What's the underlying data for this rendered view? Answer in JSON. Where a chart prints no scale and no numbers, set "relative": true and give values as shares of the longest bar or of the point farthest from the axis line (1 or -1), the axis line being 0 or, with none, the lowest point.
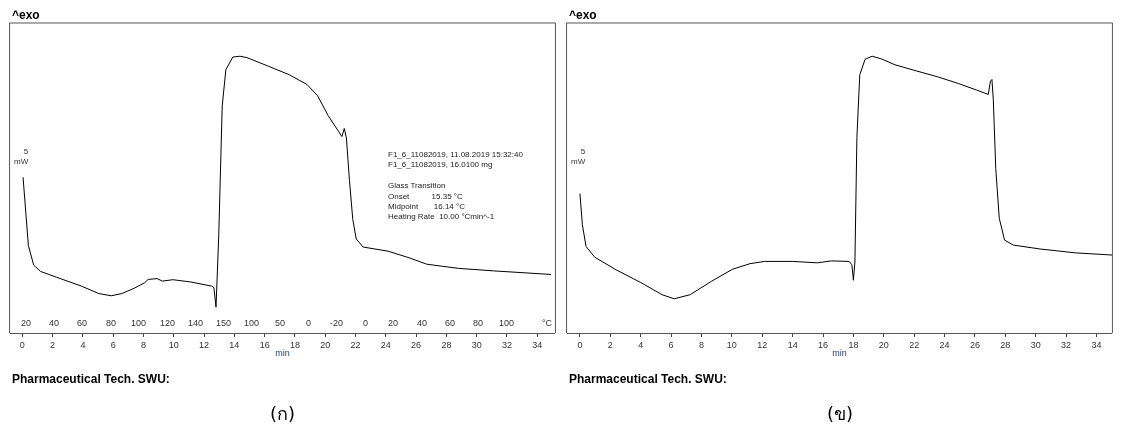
{
  "chart_data": [
    {
      "type": "line",
      "title": "^exo",
      "subtitle": "(ก)",
      "xlabel": "min",
      "relative": true,
      "marker": "none",
      "line_style": "solid",
      "xlim": [
        -0.84,
        35.2
      ],
      "xticks": [
        0,
        2,
        4,
        6,
        8,
        10,
        12,
        14,
        16,
        18,
        20,
        22,
        24,
        26,
        28,
        30,
        32,
        34
      ],
      "annotations": [
        "5\nmW",
        "Pharmaceutical Tech. SWU:",
        "F1_6_11082019, 11.08.2019 15:32:40\nF1_6_11082019, 16.0100 mg\n\nGlass Transition\nOnset          15.35 °C\nMidpoint       16.14 °C\nHeating Rate  10.00 °Cmin^-1",
        "°C",
        "20",
        "40",
        "60",
        "80",
        "100",
        "120",
        "140",
        "150",
        "100",
        "50",
        "0",
        "-20",
        "0",
        "20",
        "40",
        "60",
        "80",
        "100"
      ],
      "series": [
        {
          "color": "#000000",
          "x": [
            0.05,
            0.4,
            0.75,
            1.2,
            2.26,
            3.9,
            5.05,
            5.87,
            6.57,
            7.38,
            8.08,
            8.31,
            8.9,
            9.25,
            9.94,
            11.1,
            12.5,
            12.65,
            12.79,
            12.97,
            13.2,
            13.44,
            13.9,
            14.37,
            14.83,
            16.2,
            17.63,
            18.8,
            19.5,
            20.19,
            20.9,
            21.1,
            21.26,
            21.4,
            21.6,
            21.82,
            22.05,
            22.5,
            24.15,
            25.55,
            26.7,
            28.8,
            31.1,
            34.9
          ],
          "values": [
            0.563,
            0.317,
            0.246,
            0.223,
            0.202,
            0.17,
            0.143,
            0.135,
            0.143,
            0.162,
            0.182,
            0.194,
            0.197,
            0.188,
            0.193,
            0.185,
            0.17,
            0.165,
            0.094,
            0.352,
            0.821,
            0.951,
            0.997,
            1.0,
            0.995,
            0.965,
            0.933,
            0.898,
            0.857,
            0.786,
            0.727,
            0.71,
            0.739,
            0.705,
            0.552,
            0.411,
            0.34,
            0.311,
            0.296,
            0.272,
            0.249,
            0.234,
            0.225,
            0.212
          ]
        }
      ]
    },
    {
      "type": "line",
      "title": "^exo",
      "subtitle": "(ข)",
      "xlabel": "min",
      "relative": true,
      "marker": "none",
      "line_style": "solid",
      "xlim": [
        -0.88,
        35.05
      ],
      "xticks": [
        0,
        2,
        4,
        6,
        8,
        10,
        12,
        14,
        16,
        18,
        20,
        22,
        24,
        26,
        28,
        30,
        32,
        34
      ],
      "annotations": [
        "5\nmW",
        "Pharmaceutical Tech. SWU:"
      ],
      "series": [
        {
          "color": "#000000",
          "x": [
            0.0,
            0.16,
            0.4,
            0.98,
            2.37,
            4.0,
            5.4,
            6.2,
            7.26,
            8.65,
            10.05,
            11.2,
            12.14,
            14.0,
            15.63,
            16.56,
            17.72,
            17.9,
            18.0,
            18.1,
            18.23,
            18.42,
            18.77,
            19.23,
            19.81,
            20.74,
            22.14,
            23.53,
            24.93,
            26.1,
            26.88,
            27.02,
            27.12,
            27.21,
            27.37,
            27.6,
            27.95,
            28.53,
            30.28,
            32.6,
            35.05
          ],
          "values": [
            0.504,
            0.392,
            0.313,
            0.274,
            0.229,
            0.183,
            0.139,
            0.124,
            0.139,
            0.187,
            0.231,
            0.251,
            0.259,
            0.259,
            0.254,
            0.261,
            0.259,
            0.247,
            0.191,
            0.257,
            0.707,
            0.933,
            0.989,
            1.0,
            0.991,
            0.969,
            0.947,
            0.926,
            0.901,
            0.878,
            0.862,
            0.91,
            0.916,
            0.842,
            0.594,
            0.415,
            0.336,
            0.318,
            0.304,
            0.29,
            0.282
          ]
        }
      ]
    }
  ]
}
